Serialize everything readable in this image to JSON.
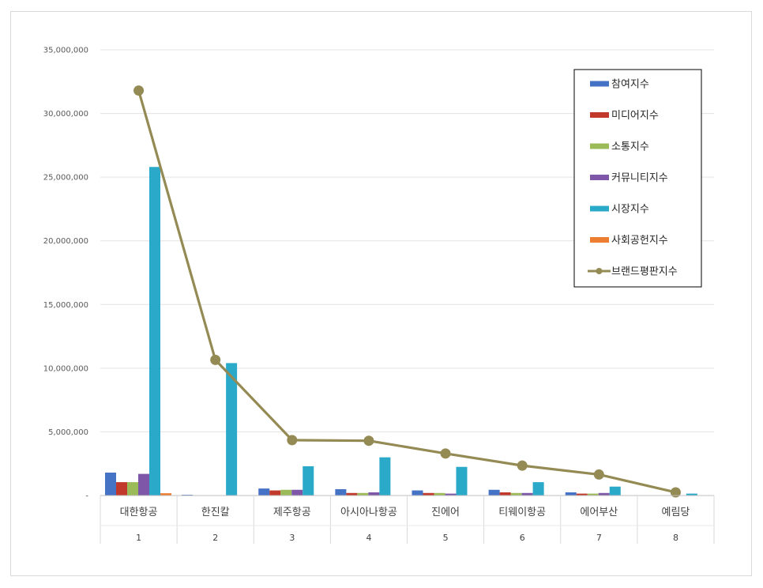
{
  "chart_data": {
    "type": "bar",
    "categories": [
      "대한항공",
      "한진칼",
      "제주항공",
      "아시아나항공",
      "진에어",
      "티웨이항공",
      "에어부산",
      "예림당"
    ],
    "category_numbers": [
      "1",
      "2",
      "3",
      "4",
      "5",
      "6",
      "7",
      "8"
    ],
    "ylim": [
      0,
      35000000
    ],
    "yticks": [
      0,
      5000000,
      10000000,
      15000000,
      20000000,
      25000000,
      30000000,
      35000000
    ],
    "ytick_labels": [
      "-",
      "5,000,000",
      "10,000,000",
      "15,000,000",
      "20,000,000",
      "25,000,000",
      "30,000,000",
      "35,000,000"
    ],
    "grid": true,
    "legend_position": "top-right",
    "series": [
      {
        "name": "참여지수",
        "type": "bar",
        "color": "#4472c4",
        "values": [
          1800000,
          60000,
          550000,
          500000,
          400000,
          450000,
          250000,
          30000
        ]
      },
      {
        "name": "미디어지수",
        "type": "bar",
        "color": "#c0392b",
        "values": [
          1050000,
          0,
          400000,
          200000,
          200000,
          250000,
          150000,
          10000
        ]
      },
      {
        "name": "소통지수",
        "type": "bar",
        "color": "#9bbb59",
        "values": [
          1050000,
          0,
          450000,
          200000,
          200000,
          200000,
          150000,
          10000
        ]
      },
      {
        "name": "커뮤니티지수",
        "type": "bar",
        "color": "#7e57a8",
        "values": [
          1700000,
          0,
          450000,
          250000,
          150000,
          200000,
          200000,
          10000
        ]
      },
      {
        "name": "시장지수",
        "type": "bar",
        "color": "#2ba9c9",
        "values": [
          25800000,
          10400000,
          2300000,
          3000000,
          2250000,
          1050000,
          700000,
          150000
        ]
      },
      {
        "name": "사회공헌지수",
        "type": "bar",
        "color": "#ed7d31",
        "values": [
          180000,
          0,
          0,
          0,
          0,
          0,
          0,
          0
        ]
      },
      {
        "name": "브랜드평판지수",
        "type": "line",
        "color": "#948a54",
        "values": [
          31800000,
          10650000,
          4350000,
          4300000,
          3300000,
          2350000,
          1650000,
          250000
        ]
      }
    ]
  }
}
